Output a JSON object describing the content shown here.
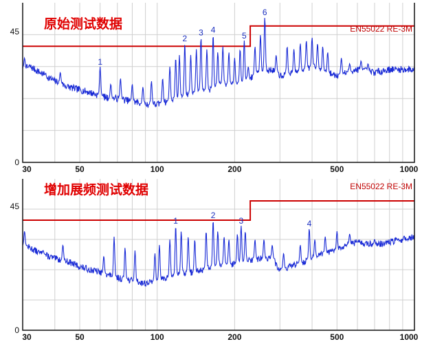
{
  "chart_data": [
    {
      "type": "line",
      "title": "原始测试数据",
      "xscale": "log",
      "xlim": [
        30,
        1000
      ],
      "ylim": [
        0,
        55
      ],
      "x_ticks": [
        30,
        50,
        100,
        200,
        500,
        1000
      ],
      "y_ticks": [
        0,
        45
      ],
      "grid": true,
      "limit": {
        "name": "EN55022 RE-3M",
        "color": "#cc0000",
        "segments": [
          {
            "x": [
              30,
              230
            ],
            "y": 40
          },
          {
            "x": [
              230,
              1000
            ],
            "y": 47
          }
        ]
      },
      "series": [
        {
          "color": "#1a2bd6",
          "baseline": [
            [
              30,
              32
            ],
            [
              32,
              33
            ],
            [
              35,
              31
            ],
            [
              40,
              28
            ],
            [
              45,
              26
            ],
            [
              50,
              25
            ],
            [
              55,
              24
            ],
            [
              60,
              23
            ],
            [
              65,
              22
            ],
            [
              70,
              22
            ],
            [
              80,
              21
            ],
            [
              90,
              20
            ],
            [
              100,
              20
            ],
            [
              110,
              21
            ],
            [
              120,
              22
            ],
            [
              130,
              23
            ],
            [
              140,
              24
            ],
            [
              150,
              25
            ],
            [
              160,
              25
            ],
            [
              180,
              27
            ],
            [
              200,
              27
            ],
            [
              220,
              28
            ],
            [
              250,
              31
            ],
            [
              280,
              32
            ],
            [
              300,
              30
            ],
            [
              350,
              31
            ],
            [
              400,
              33
            ],
            [
              450,
              31
            ],
            [
              500,
              30
            ],
            [
              550,
              31
            ],
            [
              600,
              32
            ],
            [
              700,
              31
            ],
            [
              800,
              32
            ],
            [
              900,
              32
            ],
            [
              1000,
              32
            ]
          ],
          "noise": 1.2,
          "spikes": [
            [
              30.5,
              36
            ],
            [
              36,
              29
            ],
            [
              42,
              31
            ],
            [
              60,
              33
            ],
            [
              66,
              27
            ],
            [
              72,
              29
            ],
            [
              80,
              27
            ],
            [
              88,
              26
            ],
            [
              95,
              28
            ],
            [
              105,
              29
            ],
            [
              112,
              33
            ],
            [
              118,
              36
            ],
            [
              122,
              37
            ],
            [
              128,
              41
            ],
            [
              135,
              37
            ],
            [
              142,
              39
            ],
            [
              148,
              43
            ],
            [
              156,
              39
            ],
            [
              165,
              44
            ],
            [
              172,
              38
            ],
            [
              180,
              40
            ],
            [
              190,
              38
            ],
            [
              200,
              36
            ],
            [
              210,
              39
            ],
            [
              218,
              42
            ],
            [
              226,
              33
            ],
            [
              240,
              40
            ],
            [
              252,
              44
            ],
            [
              262,
              50
            ],
            [
              290,
              37
            ],
            [
              320,
              40
            ],
            [
              340,
              39
            ],
            [
              360,
              41
            ],
            [
              380,
              42
            ],
            [
              400,
              43
            ],
            [
              420,
              41
            ],
            [
              440,
              40
            ],
            [
              460,
              38
            ],
            [
              520,
              36
            ],
            [
              560,
              34
            ],
            [
              620,
              35
            ],
            [
              660,
              34
            ]
          ]
        }
      ],
      "annotations": [
        {
          "label": "1",
          "x": 60,
          "y": 33
        },
        {
          "label": "2",
          "x": 128,
          "y": 41
        },
        {
          "label": "3",
          "x": 148,
          "y": 43
        },
        {
          "label": "4",
          "x": 165,
          "y": 44
        },
        {
          "label": "5",
          "x": 218,
          "y": 42
        },
        {
          "label": "6",
          "x": 262,
          "y": 50
        }
      ]
    },
    {
      "type": "line",
      "title": "增加展频测试数据",
      "xscale": "log",
      "xlim": [
        30,
        1000
      ],
      "ylim": [
        0,
        55
      ],
      "x_ticks": [
        30,
        50,
        100,
        200,
        500,
        1000
      ],
      "y_ticks": [
        0,
        45
      ],
      "grid": true,
      "limit": {
        "name": "EN55022 RE-3M",
        "color": "#cc0000",
        "segments": [
          {
            "x": [
              30,
              230
            ],
            "y": 40
          },
          {
            "x": [
              230,
              1000
            ],
            "y": 47
          }
        ]
      },
      "series": [
        {
          "color": "#1a2bd6",
          "baseline": [
            [
              30,
              31
            ],
            [
              32,
              30
            ],
            [
              35,
              28
            ],
            [
              40,
              26
            ],
            [
              45,
              25
            ],
            [
              50,
              23
            ],
            [
              55,
              22
            ],
            [
              60,
              21
            ],
            [
              65,
              20
            ],
            [
              70,
              19
            ],
            [
              80,
              18
            ],
            [
              90,
              17
            ],
            [
              100,
              18
            ],
            [
              110,
              19
            ],
            [
              120,
              20
            ],
            [
              130,
              21
            ],
            [
              140,
              21
            ],
            [
              150,
              22
            ],
            [
              160,
              23
            ],
            [
              180,
              24
            ],
            [
              200,
              24
            ],
            [
              220,
              25
            ],
            [
              250,
              26
            ],
            [
              280,
              26
            ],
            [
              300,
              22
            ],
            [
              350,
              24
            ],
            [
              400,
              26
            ],
            [
              450,
              28
            ],
            [
              500,
              29
            ],
            [
              550,
              31
            ],
            [
              600,
              32
            ],
            [
              700,
              31
            ],
            [
              800,
              32
            ],
            [
              900,
              33
            ],
            [
              1000,
              34
            ]
          ],
          "noise": 1.2,
          "spikes": [
            [
              30.5,
              36
            ],
            [
              36,
              29
            ],
            [
              43,
              31
            ],
            [
              62,
              27
            ],
            [
              68,
              34
            ],
            [
              75,
              30
            ],
            [
              82,
              29
            ],
            [
              98,
              28
            ],
            [
              102,
              31
            ],
            [
              112,
              33
            ],
            [
              118,
              38
            ],
            [
              124,
              36
            ],
            [
              132,
              34
            ],
            [
              140,
              33
            ],
            [
              155,
              36
            ],
            [
              165,
              40
            ],
            [
              172,
              36
            ],
            [
              182,
              34
            ],
            [
              190,
              33
            ],
            [
              205,
              35
            ],
            [
              212,
              38
            ],
            [
              220,
              36
            ],
            [
              240,
              33
            ],
            [
              260,
              33
            ],
            [
              280,
              31
            ],
            [
              310,
              28
            ],
            [
              360,
              31
            ],
            [
              390,
              37
            ],
            [
              410,
              33
            ],
            [
              450,
              34
            ],
            [
              500,
              36
            ],
            [
              560,
              35
            ],
            [
              600,
              32
            ],
            [
              700,
              33
            ]
          ]
        }
      ],
      "annotations": [
        {
          "label": "1",
          "x": 118,
          "y": 38
        },
        {
          "label": "2",
          "x": 165,
          "y": 40
        },
        {
          "label": "3",
          "x": 212,
          "y": 38
        },
        {
          "label": "4",
          "x": 390,
          "y": 37
        }
      ]
    }
  ]
}
